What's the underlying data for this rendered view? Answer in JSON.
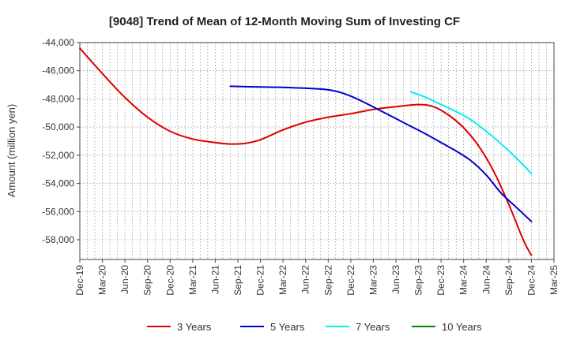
{
  "chart_data": {
    "type": "line",
    "title": "[9048]  Trend of Mean of 12-Month Moving Sum of Investing CF",
    "ylabel": "Amount (million yen)",
    "xlabel": "",
    "ylim": [
      -59400,
      -44000
    ],
    "yticks": [
      -44000,
      -46000,
      -48000,
      -50000,
      -52000,
      -54000,
      -56000,
      -58000
    ],
    "ytick_labels": [
      "-44,000",
      "-46,000",
      "-48,000",
      "-50,000",
      "-52,000",
      "-54,000",
      "-56,000",
      "-58,000"
    ],
    "x_start": "Dec-19",
    "x_months": 63,
    "xtick_labels": [
      "Dec-19",
      "Mar-20",
      "Jun-20",
      "Sep-20",
      "Dec-20",
      "Mar-21",
      "Jun-21",
      "Sep-21",
      "Dec-21",
      "Mar-22",
      "Jun-22",
      "Sep-22",
      "Dec-22",
      "Mar-23",
      "Jun-23",
      "Sep-23",
      "Dec-23",
      "Mar-24",
      "Jun-24",
      "Sep-24",
      "Dec-24",
      "Mar-25"
    ],
    "grid": true,
    "legend_position": "bottom",
    "series": [
      {
        "name": "3 Years",
        "color": "#dd0000",
        "points": [
          [
            0,
            -44400
          ],
          [
            3,
            -46200
          ],
          [
            6,
            -47900
          ],
          [
            9,
            -49300
          ],
          [
            12,
            -50300
          ],
          [
            15,
            -50850
          ],
          [
            18,
            -51100
          ],
          [
            20,
            -51200
          ],
          [
            22,
            -51150
          ],
          [
            24,
            -50900
          ],
          [
            27,
            -50200
          ],
          [
            30,
            -49650
          ],
          [
            33,
            -49300
          ],
          [
            36,
            -49050
          ],
          [
            39,
            -48750
          ],
          [
            42,
            -48550
          ],
          [
            45,
            -48400
          ],
          [
            47,
            -48550
          ],
          [
            49,
            -49150
          ],
          [
            51,
            -50050
          ],
          [
            53,
            -51350
          ],
          [
            55,
            -53150
          ],
          [
            57,
            -55500
          ],
          [
            59,
            -58100
          ],
          [
            60,
            -59100
          ]
        ]
      },
      {
        "name": "5 Years",
        "color": "#0000cc",
        "points": [
          [
            20,
            -47100
          ],
          [
            24,
            -47150
          ],
          [
            28,
            -47200
          ],
          [
            32,
            -47300
          ],
          [
            34,
            -47450
          ],
          [
            36,
            -47800
          ],
          [
            38,
            -48300
          ],
          [
            40,
            -48850
          ],
          [
            42,
            -49400
          ],
          [
            44,
            -49950
          ],
          [
            46,
            -50500
          ],
          [
            48,
            -51100
          ],
          [
            50,
            -51700
          ],
          [
            52,
            -52400
          ],
          [
            54,
            -53400
          ],
          [
            56,
            -54700
          ],
          [
            58,
            -55700
          ],
          [
            60,
            -56700
          ]
        ]
      },
      {
        "name": "7 Years",
        "color": "#00eeee",
        "points": [
          [
            44,
            -47500
          ],
          [
            46,
            -47900
          ],
          [
            48,
            -48400
          ],
          [
            50,
            -48900
          ],
          [
            52,
            -49500
          ],
          [
            54,
            -50300
          ],
          [
            56,
            -51200
          ],
          [
            58,
            -52200
          ],
          [
            60,
            -53300
          ]
        ]
      },
      {
        "name": "10 Years",
        "color": "#008800",
        "points": []
      }
    ]
  }
}
